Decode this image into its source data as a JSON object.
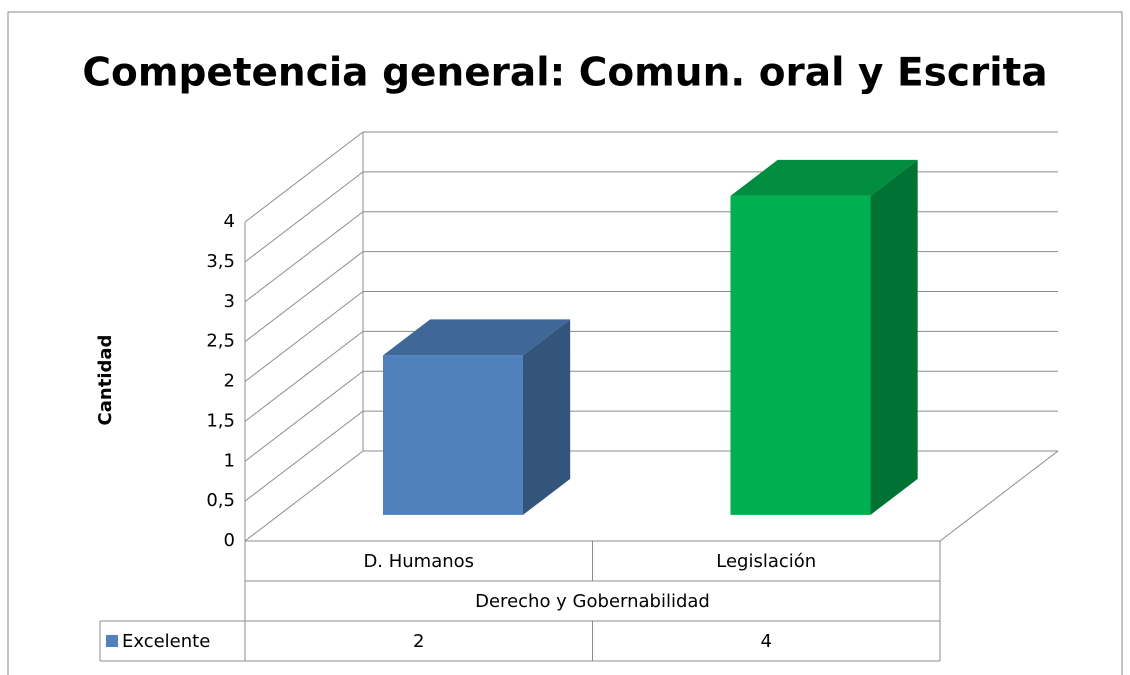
{
  "chart_data": {
    "type": "bar3d",
    "title": "Competencia general: Comun. oral y Escrita",
    "y_label": "Cantidad",
    "categories": [
      "D. Humanos",
      "Legislación"
    ],
    "group_label": "Derecho y Gobernabilidad",
    "series": [
      {
        "name": "Excelente",
        "color": "#4f81bd",
        "point_colors": [
          "#4f81bd",
          "#00b050"
        ],
        "values": [
          2,
          4
        ]
      }
    ],
    "ylim": [
      0,
      4
    ],
    "yticks": [
      0,
      {
        "value": 0.5,
        "label": "0,5"
      },
      1,
      {
        "value": 1.5,
        "label": "1,5"
      },
      2,
      {
        "value": 2.5,
        "label": "2,5"
      },
      3,
      {
        "value": 3.5,
        "label": "3,5"
      },
      4
    ],
    "grid": true,
    "data_table": true
  }
}
